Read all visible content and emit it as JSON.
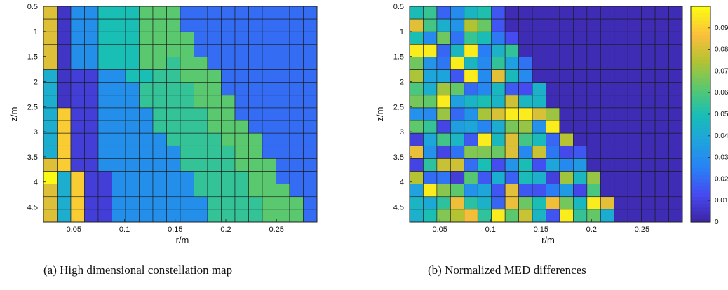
{
  "chart_data": [
    {
      "type": "heatmap",
      "caption": "(a) High dimensional constellation map",
      "xlabel": "r/m",
      "ylabel": "z/m",
      "xlim": [
        0.02,
        0.29
      ],
      "ylim": [
        4.8,
        0.5
      ],
      "xticks": [
        "0.05",
        "0.1",
        "0.15",
        "0.2",
        "0.25"
      ],
      "yticks": [
        "0.5",
        "1",
        "1.5",
        "2",
        "2.5",
        "3",
        "3.5",
        "4",
        "4.5"
      ],
      "cell_width": 0.0135,
      "rows_top_to_bottom": 17,
      "columns": 20,
      "grid_description": "column boundaries (in column units) separating regions; each row lists region levels 0-1 left to right",
      "region_levels": [
        0.95,
        0.05,
        0.3,
        0.5,
        0.62,
        0.3
      ],
      "colorbar": false
    },
    {
      "type": "heatmap",
      "caption": "(b) Normalized MED differences",
      "xlabel": "r/m",
      "ylabel": "z/m",
      "xlim": [
        0.02,
        0.29
      ],
      "ylim": [
        4.8,
        0.5
      ],
      "xticks": [
        "0.05",
        "0.1",
        "0.15",
        "0.2",
        "0.25"
      ],
      "yticks": [
        "0.5",
        "1",
        "1.5",
        "2",
        "2.5",
        "3",
        "3.5",
        "4",
        "4.5"
      ],
      "rows_top_to_bottom": 17,
      "columns": 20,
      "colorbar": true,
      "clim": [
        0,
        0.1
      ],
      "colorbar_ticks": [
        "0",
        "0.01",
        "0.02",
        "0.03",
        "0.04",
        "0.05",
        "0.06",
        "0.07",
        "0.08",
        "0.09"
      ]
    }
  ]
}
